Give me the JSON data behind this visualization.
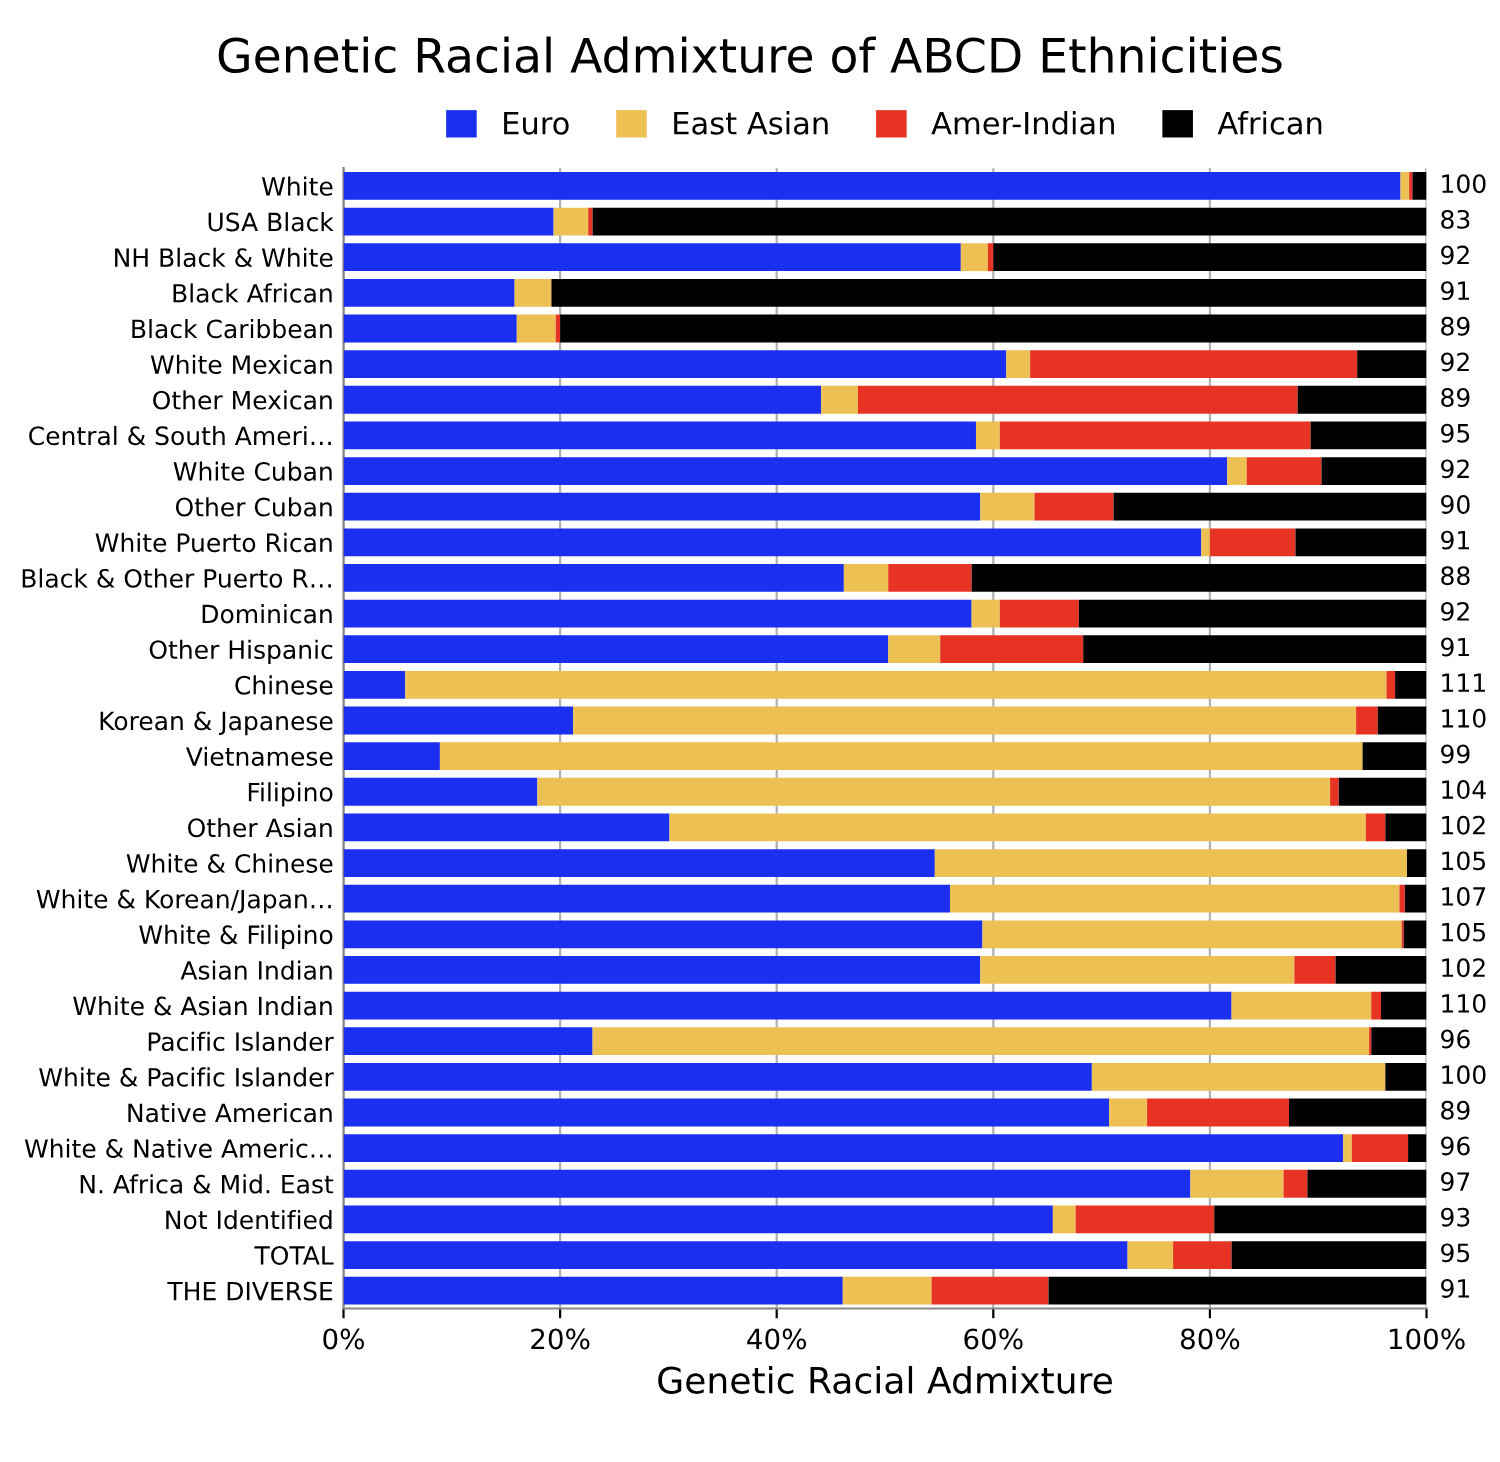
{
  "chart_data": {
    "type": "bar",
    "orientation": "horizontal",
    "stacked": true,
    "title": "Genetic Racial Admixture of ABCD Ethnicities",
    "xlabel": "Genetic Racial Admixture",
    "categories": [
      "White",
      "USA Black",
      "NH Black & White",
      "Black African",
      "Black Caribbean",
      "White Mexican",
      "Other Mexican",
      "Central & South Ameri…",
      "White Cuban",
      "Other Cuban",
      "White Puerto Rican",
      "Black & Other Puerto R…",
      "Dominican",
      "Other Hispanic",
      "Chinese",
      "Korean & Japanese",
      "Vietnamese",
      "Filipino",
      "Other Asian",
      "White & Chinese",
      "White & Korean/Japan…",
      "White & Filipino",
      "Asian Indian",
      "White & Asian Indian",
      "Pacific Islander",
      "White & Pacific Islander",
      "Native American",
      "White & Native Americ…",
      "N. Africa & Mid. East",
      "Not Identified",
      "TOTAL",
      "THE DIVERSE"
    ],
    "series": [
      {
        "name": "Euro",
        "color": "#1a2ff0",
        "values": [
          97.6,
          19.4,
          57.0,
          15.8,
          16.0,
          61.2,
          44.1,
          58.4,
          81.6,
          58.8,
          79.2,
          46.2,
          58.0,
          50.3,
          5.7,
          21.2,
          8.9,
          17.9,
          30.1,
          54.6,
          56.0,
          59.0,
          58.8,
          82.0,
          23.0,
          69.1,
          70.7,
          92.3,
          78.2,
          65.5,
          72.4,
          46.1
        ]
      },
      {
        "name": "East Asian",
        "color": "#ecc052",
        "values": [
          0.8,
          3.2,
          2.5,
          3.4,
          3.6,
          2.2,
          3.4,
          2.2,
          1.8,
          5.0,
          0.8,
          4.1,
          2.6,
          4.8,
          90.6,
          72.3,
          85.2,
          73.2,
          64.3,
          43.6,
          41.5,
          38.7,
          29.0,
          12.9,
          71.7,
          27.1,
          3.5,
          0.8,
          8.6,
          2.1,
          4.2,
          8.2
        ]
      },
      {
        "name": "Amer-Indian",
        "color": "#e63324",
        "values": [
          0.3,
          0.4,
          0.5,
          0.0,
          0.4,
          30.2,
          40.6,
          28.7,
          6.9,
          7.3,
          7.9,
          7.7,
          7.3,
          13.2,
          0.8,
          2.0,
          0.0,
          0.8,
          1.8,
          0.0,
          0.5,
          0.2,
          3.8,
          0.9,
          0.2,
          0.0,
          13.1,
          5.2,
          2.2,
          12.8,
          5.4,
          10.8
        ]
      },
      {
        "name": "African",
        "color": "#000000",
        "values": [
          1.3,
          77.0,
          40.0,
          80.8,
          80.0,
          6.4,
          11.9,
          10.7,
          9.7,
          28.9,
          12.1,
          42.0,
          32.1,
          31.7,
          2.9,
          4.5,
          5.9,
          8.1,
          3.8,
          1.8,
          2.0,
          2.1,
          8.4,
          4.2,
          5.1,
          3.8,
          12.7,
          1.7,
          11.0,
          19.6,
          18.0,
          34.9
        ]
      }
    ],
    "annotations": [
      "100",
      "83",
      "92",
      "91",
      "89",
      "92",
      "89",
      "95",
      "92",
      "90",
      "91",
      "88",
      "92",
      "91",
      "111",
      "110",
      "99",
      "104",
      "102",
      "105",
      "107",
      "105",
      "102",
      "110",
      "96",
      "100",
      "89",
      "96",
      "97",
      "93",
      "95",
      "91"
    ],
    "xlim": [
      0,
      100
    ],
    "xticks": [
      {
        "value": 0,
        "label": "0%"
      },
      {
        "value": 20,
        "label": "20%"
      },
      {
        "value": 40,
        "label": "40%"
      },
      {
        "value": 60,
        "label": "60%"
      },
      {
        "value": 80,
        "label": "80%"
      },
      {
        "value": 100,
        "label": "100%"
      }
    ],
    "grid": "x",
    "legend": "top"
  }
}
